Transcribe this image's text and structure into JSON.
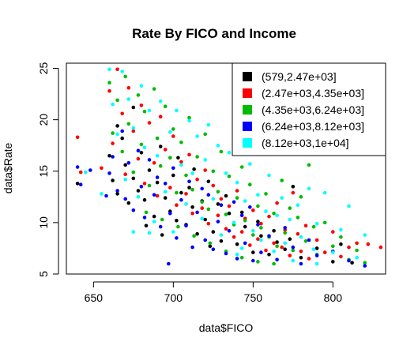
{
  "chart_data": {
    "type": "scatter",
    "title": "Rate By FICO and Income",
    "xlabel": "data$FICO",
    "ylabel": "data$Rate",
    "xlim": [
      633,
      833
    ],
    "ylim": [
      5,
      25.5
    ],
    "xticks": [
      650,
      700,
      750,
      800
    ],
    "yticks": [
      5,
      10,
      15,
      20,
      25
    ],
    "legend_position": "top-right",
    "series": [
      {
        "name": "(579,2.47e+03]",
        "color": "#000000",
        "points": [
          [
            640,
            13.8
          ],
          [
            660,
            16.5
          ],
          [
            662,
            14.1
          ],
          [
            665,
            12.8
          ],
          [
            668,
            18.2
          ],
          [
            670,
            15.6
          ],
          [
            672,
            11.9
          ],
          [
            675,
            14.3
          ],
          [
            678,
            13.1
          ],
          [
            680,
            16.8
          ],
          [
            682,
            12.2
          ],
          [
            685,
            15.1
          ],
          [
            688,
            10.6
          ],
          [
            690,
            13.9
          ],
          [
            692,
            17.4
          ],
          [
            695,
            12.4
          ],
          [
            698,
            11.1
          ],
          [
            700,
            14.6
          ],
          [
            702,
            10.2
          ],
          [
            705,
            12.9
          ],
          [
            708,
            9.8
          ],
          [
            710,
            13.4
          ],
          [
            712,
            11.5
          ],
          [
            715,
            8.9
          ],
          [
            718,
            12.1
          ],
          [
            720,
            10.3
          ],
          [
            722,
            14.0
          ],
          [
            725,
            9.1
          ],
          [
            728,
            11.8
          ],
          [
            730,
            8.2
          ],
          [
            735,
            10.9
          ],
          [
            740,
            7.9
          ],
          [
            745,
            9.6
          ],
          [
            750,
            7.1
          ],
          [
            755,
            8.7
          ],
          [
            760,
            6.9
          ],
          [
            765,
            8.1
          ],
          [
            770,
            7.4
          ],
          [
            775,
            13.5
          ],
          [
            780,
            6.6
          ],
          [
            790,
            7.5
          ],
          [
            800,
            6.2
          ],
          [
            805,
            7.9
          ],
          [
            812,
            6.1
          ],
          [
            665,
            19.4
          ],
          [
            675,
            21.2
          ],
          [
            683,
            9.7
          ],
          [
            693,
            8.8
          ],
          [
            703,
            16.3
          ],
          [
            713,
            15.2
          ],
          [
            723,
            7.7
          ],
          [
            733,
            12.6
          ],
          [
            743,
            11.0
          ],
          [
            753,
            10.1
          ],
          [
            763,
            9.2
          ],
          [
            773,
            8.4
          ]
        ]
      },
      {
        "name": "(2.47e+03,4.35e+03]",
        "color": "#ff0000",
        "points": [
          [
            640,
            18.3
          ],
          [
            642,
            14.9
          ],
          [
            655,
            15.3
          ],
          [
            660,
            22.8
          ],
          [
            662,
            17.7
          ],
          [
            665,
            24.9
          ],
          [
            668,
            20.6
          ],
          [
            670,
            14.7
          ],
          [
            672,
            23.1
          ],
          [
            675,
            18.9
          ],
          [
            678,
            16.2
          ],
          [
            680,
            21.4
          ],
          [
            682,
            13.8
          ],
          [
            685,
            19.7
          ],
          [
            688,
            15.8
          ],
          [
            690,
            12.6
          ],
          [
            692,
            20.3
          ],
          [
            695,
            17.1
          ],
          [
            698,
            13.4
          ],
          [
            700,
            18.4
          ],
          [
            702,
            11.7
          ],
          [
            705,
            15.9
          ],
          [
            708,
            12.8
          ],
          [
            710,
            16.6
          ],
          [
            712,
            10.9
          ],
          [
            715,
            14.2
          ],
          [
            718,
            11.4
          ],
          [
            720,
            15.1
          ],
          [
            722,
            9.9
          ],
          [
            725,
            13.6
          ],
          [
            728,
            10.7
          ],
          [
            730,
            12.3
          ],
          [
            733,
            9.4
          ],
          [
            735,
            11.6
          ],
          [
            738,
            8.6
          ],
          [
            740,
            13.1
          ],
          [
            743,
            9.1
          ],
          [
            745,
            10.4
          ],
          [
            748,
            7.8
          ],
          [
            750,
            11.2
          ],
          [
            753,
            8.4
          ],
          [
            755,
            9.9
          ],
          [
            758,
            7.3
          ],
          [
            760,
            10.6
          ],
          [
            763,
            8.0
          ],
          [
            765,
            11.9
          ],
          [
            768,
            7.6
          ],
          [
            770,
            9.3
          ],
          [
            773,
            6.8
          ],
          [
            775,
            12.9
          ],
          [
            778,
            8.9
          ],
          [
            780,
            7.2
          ],
          [
            783,
            9.7
          ],
          [
            785,
            6.5
          ],
          [
            790,
            8.3
          ],
          [
            795,
            7.1
          ],
          [
            800,
            9.1
          ],
          [
            805,
            6.7
          ],
          [
            810,
            7.6
          ],
          [
            815,
            8.0
          ],
          [
            822,
            7.9
          ],
          [
            830,
            7.6
          ]
        ]
      },
      {
        "name": "(4.35e+03,6.24e+03]",
        "color": "#00bb00",
        "points": [
          [
            660,
            23.6
          ],
          [
            662,
            18.7
          ],
          [
            665,
            21.9
          ],
          [
            668,
            16.9
          ],
          [
            670,
            24.2
          ],
          [
            672,
            19.6
          ],
          [
            675,
            14.9
          ],
          [
            678,
            22.4
          ],
          [
            680,
            17.6
          ],
          [
            682,
            20.8
          ],
          [
            685,
            13.6
          ],
          [
            688,
            23.0
          ],
          [
            690,
            18.2
          ],
          [
            692,
            15.5
          ],
          [
            695,
            21.3
          ],
          [
            698,
            16.3
          ],
          [
            700,
            19.1
          ],
          [
            702,
            12.9
          ],
          [
            705,
            17.8
          ],
          [
            708,
            14.6
          ],
          [
            710,
            20.2
          ],
          [
            712,
            13.2
          ],
          [
            715,
            16.4
          ],
          [
            718,
            12.0
          ],
          [
            720,
            18.6
          ],
          [
            722,
            11.3
          ],
          [
            725,
            15.0
          ],
          [
            728,
            13.0
          ],
          [
            730,
            16.9
          ],
          [
            733,
            10.8
          ],
          [
            735,
            14.5
          ],
          [
            738,
            9.8
          ],
          [
            740,
            12.4
          ],
          [
            743,
            15.4
          ],
          [
            745,
            10.2
          ],
          [
            748,
            13.7
          ],
          [
            750,
            8.8
          ],
          [
            753,
            11.6
          ],
          [
            755,
            9.5
          ],
          [
            758,
            12.8
          ],
          [
            760,
            8.6
          ],
          [
            763,
            10.9
          ],
          [
            765,
            7.7
          ],
          [
            768,
            14.1
          ],
          [
            770,
            9.0
          ],
          [
            773,
            11.4
          ],
          [
            775,
            7.3
          ],
          [
            778,
            10.5
          ],
          [
            780,
            12.5
          ],
          [
            783,
            8.2
          ],
          [
            785,
            15.6
          ],
          [
            788,
            9.6
          ],
          [
            790,
            6.9
          ],
          [
            795,
            10.0
          ],
          [
            800,
            7.7
          ],
          [
            805,
            8.6
          ],
          [
            810,
            6.4
          ],
          [
            815,
            7.3
          ],
          [
            820,
            6.1
          ],
          [
            683,
            11.0
          ],
          [
            693,
            10.3
          ],
          [
            703,
            9.6
          ],
          [
            713,
            8.7
          ],
          [
            723,
            8.0
          ],
          [
            733,
            7.2
          ],
          [
            743,
            6.6
          ],
          [
            753,
            6.2
          ],
          [
            763,
            6.0
          ]
        ]
      },
      {
        "name": "(6.24e+03,8.12e+03]",
        "color": "#0000ff",
        "points": [
          [
            640,
            15.4
          ],
          [
            642,
            13.7
          ],
          [
            648,
            15.1
          ],
          [
            658,
            12.6
          ],
          [
            660,
            14.8
          ],
          [
            662,
            16.4
          ],
          [
            665,
            13.1
          ],
          [
            668,
            18.9
          ],
          [
            670,
            12.3
          ],
          [
            672,
            15.8
          ],
          [
            675,
            11.2
          ],
          [
            678,
            17.0
          ],
          [
            680,
            13.5
          ],
          [
            682,
            10.5
          ],
          [
            685,
            16.1
          ],
          [
            688,
            12.7
          ],
          [
            690,
            14.4
          ],
          [
            692,
            9.6
          ],
          [
            695,
            13.8
          ],
          [
            698,
            10.9
          ],
          [
            700,
            15.3
          ],
          [
            702,
            8.5
          ],
          [
            705,
            12.2
          ],
          [
            708,
            9.7
          ],
          [
            710,
            14.0
          ],
          [
            712,
            7.6
          ],
          [
            715,
            11.0
          ],
          [
            718,
            13.3
          ],
          [
            720,
            8.3
          ],
          [
            722,
            12.7
          ],
          [
            725,
            7.4
          ],
          [
            728,
            10.1
          ],
          [
            730,
            11.7
          ],
          [
            733,
            7.0
          ],
          [
            735,
            9.2
          ],
          [
            738,
            12.0
          ],
          [
            740,
            6.5
          ],
          [
            743,
            10.7
          ],
          [
            745,
            8.0
          ],
          [
            748,
            11.5
          ],
          [
            750,
            6.3
          ],
          [
            753,
            9.8
          ],
          [
            755,
            7.1
          ],
          [
            760,
            8.7
          ],
          [
            765,
            6.4
          ],
          [
            770,
            9.5
          ],
          [
            775,
            7.6
          ],
          [
            780,
            6.0
          ],
          [
            785,
            8.3
          ],
          [
            790,
            6.8
          ],
          [
            800,
            7.2
          ],
          [
            810,
            6.3
          ],
          [
            820,
            5.8
          ],
          [
            697,
            6.0
          ]
        ]
      },
      {
        "name": "(8.12e+03,1e+04]",
        "color": "#00ffff",
        "points": [
          [
            645,
            14.9
          ],
          [
            655,
            12.8
          ],
          [
            660,
            24.9
          ],
          [
            662,
            21.5
          ],
          [
            665,
            18.6
          ],
          [
            668,
            24.7
          ],
          [
            670,
            14.2
          ],
          [
            672,
            22.0
          ],
          [
            675,
            19.2
          ],
          [
            678,
            12.5
          ],
          [
            680,
            23.3
          ],
          [
            682,
            17.3
          ],
          [
            685,
            20.9
          ],
          [
            688,
            10.1
          ],
          [
            690,
            16.5
          ],
          [
            692,
            21.8
          ],
          [
            695,
            13.0
          ],
          [
            698,
            18.8
          ],
          [
            700,
            9.1
          ],
          [
            702,
            20.9
          ],
          [
            705,
            15.6
          ],
          [
            708,
            11.8
          ],
          [
            710,
            19.9
          ],
          [
            712,
            14.8
          ],
          [
            715,
            18.4
          ],
          [
            718,
            10.4
          ],
          [
            720,
            16.1
          ],
          [
            722,
            19.5
          ],
          [
            725,
            12.3
          ],
          [
            728,
            17.5
          ],
          [
            730,
            8.8
          ],
          [
            733,
            14.8
          ],
          [
            735,
            16.8
          ],
          [
            738,
            10.0
          ],
          [
            740,
            13.9
          ],
          [
            743,
            7.5
          ],
          [
            745,
            12.1
          ],
          [
            748,
            15.7
          ],
          [
            750,
            9.2
          ],
          [
            753,
            12.7
          ],
          [
            755,
            8.3
          ],
          [
            758,
            11.1
          ],
          [
            760,
            14.6
          ],
          [
            763,
            7.2
          ],
          [
            765,
            10.7
          ],
          [
            768,
            12.4
          ],
          [
            770,
            8.0
          ],
          [
            773,
            10.3
          ],
          [
            775,
            6.3
          ],
          [
            778,
            11.7
          ],
          [
            780,
            8.6
          ],
          [
            785,
            13.3
          ],
          [
            788,
            7.4
          ],
          [
            790,
            9.9
          ],
          [
            795,
            12.9
          ],
          [
            800,
            7.1
          ],
          [
            805,
            9.3
          ],
          [
            810,
            11.6
          ],
          [
            815,
            6.6
          ],
          [
            820,
            8.8
          ],
          [
            675,
            9.1
          ],
          [
            685,
            9.0
          ],
          [
            740,
            6.9
          ],
          [
            790,
            6.0
          ]
        ]
      }
    ]
  }
}
